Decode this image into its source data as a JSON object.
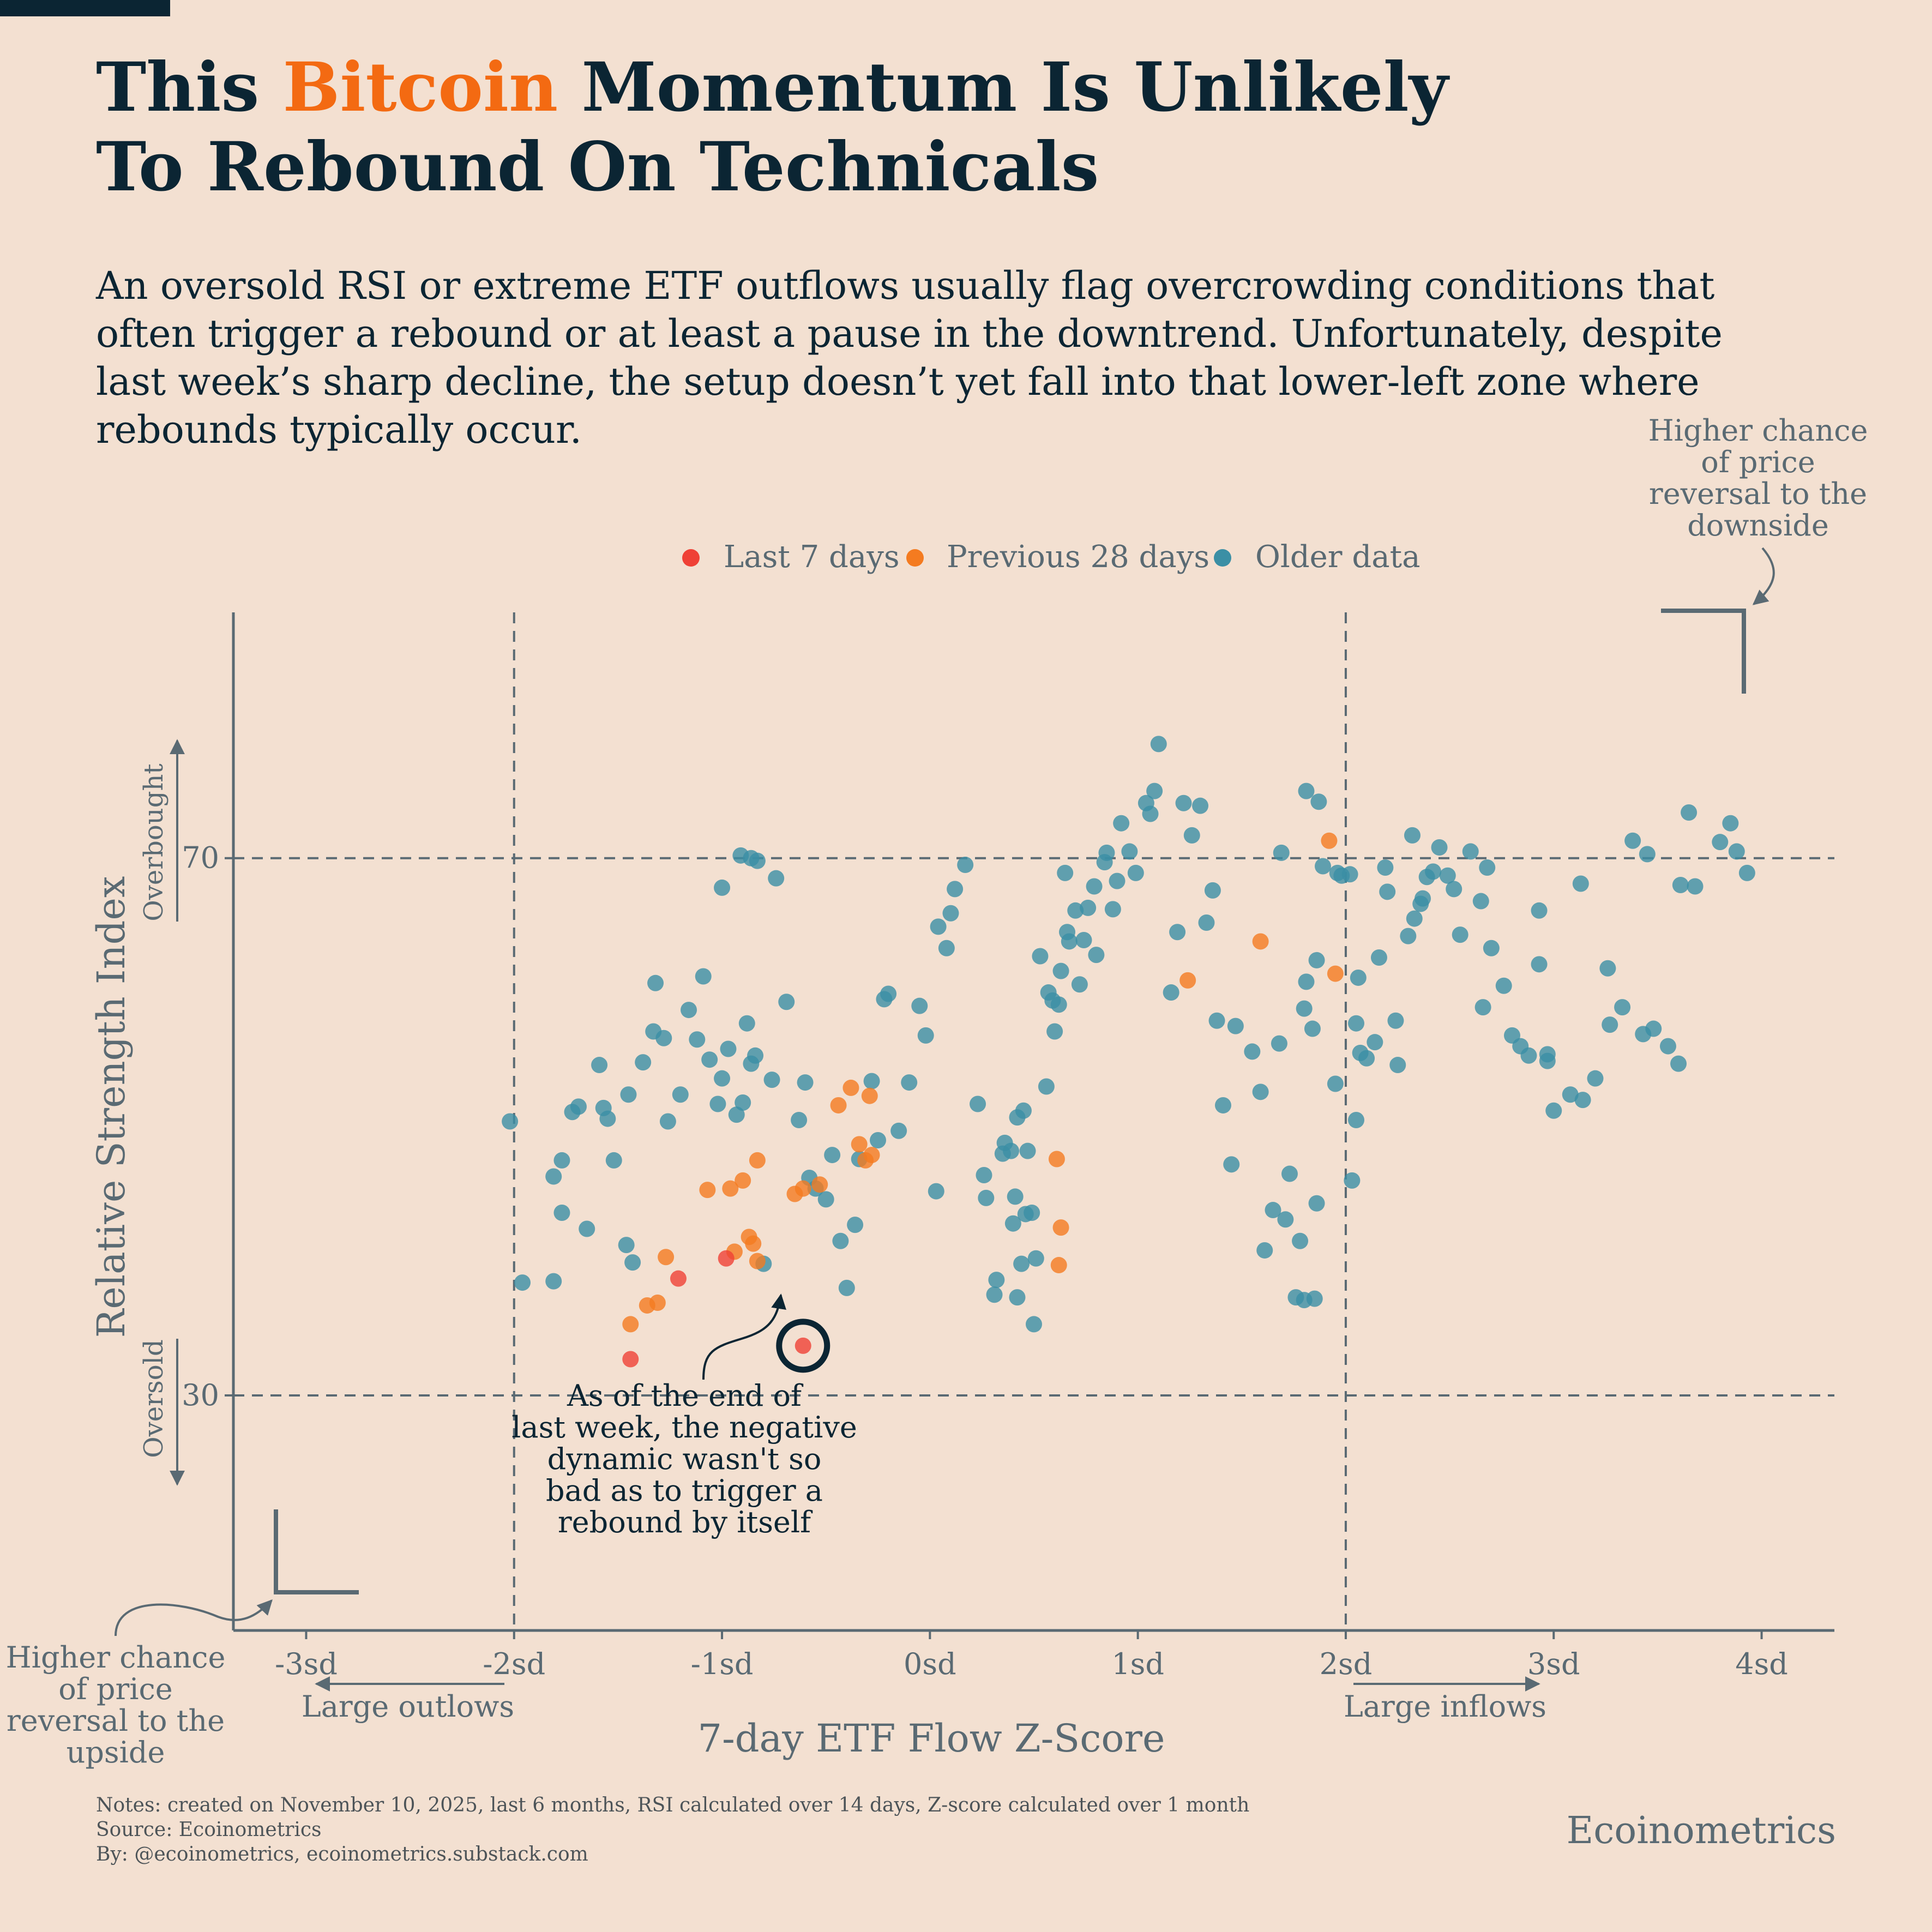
{
  "title": {
    "part1": "This ",
    "accent": "Bitcoin",
    "part2": " Momentum Is Unlikely",
    "line2": "To Rebound On Technicals"
  },
  "subtitle": "An oversold RSI or extreme ETF outflows usually flag overcrowding conditions that often trigger a rebound or at least a pause in the downtrend. Unfortunately, despite last week’s sharp decline, the setup doesn’t yet fall into that lower-left zone where rebounds typically occur.",
  "colors": {
    "last7": "#ef4136",
    "prev28": "#f47b20",
    "older": "#3b8fa5",
    "ink": "#0b2533",
    "grey": "#5a6a73"
  },
  "annotations": {
    "top_right": [
      "Higher chance",
      "of price",
      "reversal to the",
      "downside"
    ],
    "bottom_left": [
      "Higher chance",
      "of price",
      "reversal to the",
      "upside"
    ],
    "callout": [
      "As of the end of",
      "last week, the negative",
      "dynamic wasn't so",
      "bad as to trigger a",
      "rebound by itself"
    ],
    "overbought": "Overbought",
    "oversold": "Oversold",
    "large_outflows": "Large outlows",
    "large_inflows": "Large inflows"
  },
  "footer": {
    "notes": "Notes: created on November 10, 2025, last 6 months, RSI calculated over 14 days, Z-score calculated over 1 month",
    "source": "Source: Ecoinometrics",
    "by": "By: @ecoinometrics, ecoinometrics.substack.com"
  },
  "brand": "Ecoinometrics",
  "chart_data": {
    "type": "scatter",
    "xlabel": "7-day ETF Flow Z-Score",
    "ylabel": "Relative Strength Index",
    "xlim": [
      -3.35,
      4.35
    ],
    "ylim": [
      12.5,
      88.3
    ],
    "xticks": [
      -3,
      -2,
      -1,
      0,
      1,
      2,
      3,
      4
    ],
    "xtick_labels": [
      "-3sd",
      "-2sd",
      "-1sd",
      "0sd",
      "1sd",
      "2sd",
      "3sd",
      "4sd"
    ],
    "yticks": [
      30,
      70
    ],
    "ytick_labels": [
      "30",
      "70"
    ],
    "reference_lines": {
      "x": [
        -2,
        2
      ],
      "y": [
        30,
        70
      ]
    },
    "legend": {
      "placement": "top-center",
      "entries": [
        "Last 7 days",
        "Previous 28 days",
        "Older data"
      ]
    },
    "highlight": {
      "x": -0.61,
      "y": 33.7
    },
    "series": [
      {
        "name": "Last 7 days",
        "points": [
          [
            -1.44,
            32.7
          ],
          [
            -1.21,
            38.7
          ],
          [
            -0.98,
            40.2
          ],
          [
            -0.61,
            33.7
          ]
        ]
      },
      {
        "name": "Previous 28 days",
        "points": [
          [
            -1.44,
            35.3
          ],
          [
            -1.36,
            36.7
          ],
          [
            -1.31,
            36.9
          ],
          [
            -1.27,
            40.3
          ],
          [
            -1.07,
            45.3
          ],
          [
            -0.96,
            45.4
          ],
          [
            -0.94,
            40.7
          ],
          [
            -0.9,
            46.0
          ],
          [
            -0.87,
            41.8
          ],
          [
            -0.85,
            41.3
          ],
          [
            -0.83,
            40.0
          ],
          [
            -0.83,
            47.5
          ],
          [
            -0.65,
            45.0
          ],
          [
            -0.61,
            45.4
          ],
          [
            -0.53,
            45.7
          ],
          [
            -0.44,
            51.6
          ],
          [
            -0.38,
            52.9
          ],
          [
            -0.34,
            48.7
          ],
          [
            -0.31,
            47.5
          ],
          [
            -0.29,
            52.3
          ],
          [
            -0.28,
            47.9
          ],
          [
            0.61,
            47.6
          ],
          [
            0.62,
            39.7
          ],
          [
            0.63,
            42.5
          ],
          [
            1.24,
            60.9
          ],
          [
            1.59,
            63.8
          ],
          [
            1.92,
            71.3
          ],
          [
            1.95,
            61.4
          ]
        ]
      },
      {
        "name": "Older data",
        "points": [
          [
            -2.02,
            50.4
          ],
          [
            -1.96,
            38.4
          ],
          [
            -1.81,
            38.5
          ],
          [
            -1.81,
            46.3
          ],
          [
            -1.77,
            43.6
          ],
          [
            -1.77,
            47.5
          ],
          [
            -1.72,
            51.1
          ],
          [
            -1.69,
            51.5
          ],
          [
            -1.65,
            42.4
          ],
          [
            -1.59,
            54.6
          ],
          [
            -1.57,
            51.4
          ],
          [
            -1.55,
            50.6
          ],
          [
            -1.52,
            47.5
          ],
          [
            -1.46,
            41.2
          ],
          [
            -1.45,
            52.4
          ],
          [
            -1.43,
            39.9
          ],
          [
            -1.38,
            54.8
          ],
          [
            -1.33,
            57.1
          ],
          [
            -1.32,
            60.7
          ],
          [
            -1.28,
            56.6
          ],
          [
            -1.26,
            50.4
          ],
          [
            -1.2,
            52.4
          ],
          [
            -1.16,
            58.7
          ],
          [
            -1.12,
            56.5
          ],
          [
            -1.09,
            61.2
          ],
          [
            -1.06,
            55.0
          ],
          [
            -1.02,
            51.7
          ],
          [
            -1.0,
            53.6
          ],
          [
            -0.97,
            55.8
          ],
          [
            -0.93,
            50.9
          ],
          [
            -0.9,
            51.8
          ],
          [
            -0.88,
            57.7
          ],
          [
            -0.86,
            54.7
          ],
          [
            -0.84,
            55.3
          ],
          [
            -0.8,
            39.8
          ],
          [
            -0.76,
            53.5
          ],
          [
            -0.74,
            68.5
          ],
          [
            -1.0,
            67.8
          ],
          [
            -0.91,
            70.2
          ],
          [
            -0.86,
            70.0
          ],
          [
            -0.83,
            69.8
          ],
          [
            -0.69,
            59.3
          ],
          [
            -0.63,
            50.5
          ],
          [
            -0.6,
            53.3
          ],
          [
            -0.58,
            46.2
          ],
          [
            -0.55,
            45.4
          ],
          [
            -0.5,
            44.6
          ],
          [
            -0.47,
            47.9
          ],
          [
            -0.43,
            41.5
          ],
          [
            -0.4,
            38.0
          ],
          [
            -0.36,
            42.7
          ],
          [
            -0.34,
            47.6
          ],
          [
            -0.28,
            53.4
          ],
          [
            -0.25,
            49.0
          ],
          [
            -0.22,
            59.5
          ],
          [
            -0.2,
            59.9
          ],
          [
            -0.15,
            49.7
          ],
          [
            -0.1,
            53.3
          ],
          [
            -0.05,
            59.0
          ],
          [
            -0.02,
            56.8
          ],
          [
            0.03,
            45.2
          ],
          [
            0.04,
            64.9
          ],
          [
            0.08,
            63.3
          ],
          [
            0.1,
            65.9
          ],
          [
            0.12,
            67.7
          ],
          [
            0.17,
            69.5
          ],
          [
            0.23,
            51.7
          ],
          [
            0.26,
            46.4
          ],
          [
            0.27,
            44.7
          ],
          [
            0.31,
            37.5
          ],
          [
            0.32,
            38.6
          ],
          [
            0.35,
            48.0
          ],
          [
            0.36,
            48.8
          ],
          [
            0.39,
            48.2
          ],
          [
            0.4,
            42.8
          ],
          [
            0.41,
            44.8
          ],
          [
            0.42,
            37.3
          ],
          [
            0.42,
            50.7
          ],
          [
            0.44,
            39.8
          ],
          [
            0.45,
            51.2
          ],
          [
            0.46,
            43.5
          ],
          [
            0.47,
            48.2
          ],
          [
            0.49,
            43.6
          ],
          [
            0.5,
            35.3
          ],
          [
            0.51,
            40.2
          ],
          [
            0.53,
            62.7
          ],
          [
            0.56,
            53.0
          ],
          [
            0.57,
            60.0
          ],
          [
            0.59,
            59.4
          ],
          [
            0.6,
            57.1
          ],
          [
            0.62,
            59.1
          ],
          [
            0.63,
            61.6
          ],
          [
            0.65,
            68.9
          ],
          [
            0.66,
            64.5
          ],
          [
            0.67,
            63.8
          ],
          [
            0.7,
            66.1
          ],
          [
            0.72,
            60.6
          ],
          [
            0.74,
            63.9
          ],
          [
            0.76,
            66.3
          ],
          [
            0.79,
            67.9
          ],
          [
            0.8,
            62.8
          ],
          [
            0.84,
            69.7
          ],
          [
            0.85,
            70.4
          ],
          [
            0.88,
            66.2
          ],
          [
            0.9,
            68.3
          ],
          [
            0.92,
            72.6
          ],
          [
            0.96,
            70.5
          ],
          [
            0.99,
            68.9
          ],
          [
            1.04,
            74.1
          ],
          [
            1.06,
            73.3
          ],
          [
            1.08,
            75.0
          ],
          [
            1.1,
            78.5
          ],
          [
            1.16,
            60.0
          ],
          [
            1.19,
            64.5
          ],
          [
            1.22,
            74.1
          ],
          [
            1.26,
            71.7
          ],
          [
            1.3,
            73.9
          ],
          [
            1.33,
            65.2
          ],
          [
            1.36,
            67.6
          ],
          [
            1.38,
            57.9
          ],
          [
            1.41,
            51.6
          ],
          [
            1.45,
            47.2
          ],
          [
            1.47,
            57.5
          ],
          [
            1.55,
            55.6
          ],
          [
            1.59,
            52.6
          ],
          [
            1.61,
            40.8
          ],
          [
            1.65,
            43.8
          ],
          [
            1.68,
            56.2
          ],
          [
            1.71,
            43.1
          ],
          [
            1.73,
            46.5
          ],
          [
            1.76,
            37.3
          ],
          [
            1.78,
            41.5
          ],
          [
            1.8,
            37.1
          ],
          [
            1.85,
            37.2
          ],
          [
            1.86,
            44.3
          ],
          [
            1.95,
            53.2
          ],
          [
            2.03,
            46.0
          ],
          [
            2.05,
            50.5
          ],
          [
            2.06,
            61.1
          ],
          [
            2.07,
            55.5
          ],
          [
            2.1,
            55.1
          ],
          [
            2.14,
            56.3
          ],
          [
            2.16,
            62.6
          ],
          [
            2.2,
            67.5
          ],
          [
            2.25,
            54.6
          ],
          [
            2.3,
            64.2
          ],
          [
            2.33,
            65.5
          ],
          [
            2.36,
            66.6
          ],
          [
            2.39,
            68.6
          ],
          [
            2.42,
            69.0
          ],
          [
            2.45,
            70.8
          ],
          [
            2.49,
            68.7
          ],
          [
            2.52,
            67.7
          ],
          [
            2.55,
            64.3
          ],
          [
            2.6,
            70.5
          ],
          [
            2.65,
            66.8
          ],
          [
            2.7,
            63.3
          ],
          [
            2.76,
            60.5
          ],
          [
            2.8,
            56.8
          ],
          [
            2.84,
            56.0
          ],
          [
            2.88,
            55.3
          ],
          [
            2.93,
            62.1
          ],
          [
            2.97,
            54.9
          ],
          [
            3.0,
            51.2
          ],
          [
            3.08,
            52.4
          ],
          [
            3.14,
            52.0
          ],
          [
            3.2,
            53.6
          ],
          [
            3.27,
            57.6
          ],
          [
            3.33,
            58.9
          ],
          [
            3.38,
            71.3
          ],
          [
            3.43,
            56.9
          ],
          [
            3.48,
            57.3
          ],
          [
            3.55,
            56.0
          ],
          [
            3.6,
            54.7
          ],
          [
            3.68,
            67.9
          ],
          [
            3.8,
            71.2
          ],
          [
            3.85,
            72.6
          ],
          [
            3.88,
            70.5
          ],
          [
            3.93,
            68.9
          ],
          [
            1.98,
            68.7
          ],
          [
            2.02,
            68.8
          ],
          [
            2.19,
            69.3
          ],
          [
            2.32,
            71.7
          ],
          [
            2.37,
            67.0
          ],
          [
            1.81,
            75.0
          ],
          [
            1.87,
            74.2
          ],
          [
            1.96,
            68.9
          ],
          [
            1.89,
            69.4
          ],
          [
            1.69,
            70.4
          ],
          [
            1.86,
            62.4
          ],
          [
            1.81,
            60.8
          ],
          [
            1.8,
            58.8
          ],
          [
            1.84,
            57.3
          ],
          [
            2.05,
            57.7
          ],
          [
            2.24,
            57.9
          ],
          [
            2.66,
            58.9
          ],
          [
            2.68,
            69.3
          ],
          [
            2.93,
            66.1
          ],
          [
            2.97,
            55.4
          ],
          [
            3.13,
            68.1
          ],
          [
            3.61,
            68.0
          ],
          [
            3.26,
            61.8
          ],
          [
            3.45,
            70.3
          ],
          [
            3.65,
            73.4
          ]
        ]
      }
    ]
  }
}
